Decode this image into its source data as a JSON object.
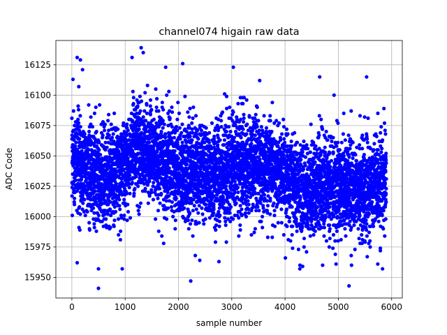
{
  "chart_data": {
    "type": "scatter",
    "title": "channel074 higain raw data",
    "xlabel": "sample number",
    "ylabel": "ADC Code",
    "xlim": [
      -300,
      6200
    ],
    "ylim": [
      15933,
      16145
    ],
    "xticks": [
      0,
      1000,
      2000,
      3000,
      4000,
      5000,
      6000
    ],
    "yticks": [
      15950,
      15975,
      16000,
      16025,
      16050,
      16075,
      16100,
      16125
    ],
    "grid": true,
    "marker_color": "#0000ff",
    "series": [
      {
        "n_points": 5900,
        "x_range": [
          0,
          5900
        ],
        "y_range": [
          15941,
          16139
        ],
        "trend": [
          {
            "x": 0,
            "y": 16048
          },
          {
            "x": 300,
            "y": 16040
          },
          {
            "x": 600,
            "y": 16032
          },
          {
            "x": 900,
            "y": 16038
          },
          {
            "x": 1200,
            "y": 16058
          },
          {
            "x": 1500,
            "y": 16055
          },
          {
            "x": 1800,
            "y": 16042
          },
          {
            "x": 2100,
            "y": 16035
          },
          {
            "x": 2400,
            "y": 16040
          },
          {
            "x": 2700,
            "y": 16032
          },
          {
            "x": 3000,
            "y": 16042
          },
          {
            "x": 3300,
            "y": 16040
          },
          {
            "x": 3600,
            "y": 16045
          },
          {
            "x": 3900,
            "y": 16038
          },
          {
            "x": 4200,
            "y": 16025
          },
          {
            "x": 4500,
            "y": 16022
          },
          {
            "x": 4800,
            "y": 16028
          },
          {
            "x": 5100,
            "y": 16025
          },
          {
            "x": 5400,
            "y": 16022
          },
          {
            "x": 5700,
            "y": 16028
          },
          {
            "x": 5900,
            "y": 16030
          }
        ],
        "spread_sd": 20,
        "outliers": [
          {
            "x": 100,
            "y": 16131
          },
          {
            "x": 160,
            "y": 16129
          },
          {
            "x": 200,
            "y": 16121
          },
          {
            "x": 100,
            "y": 15962
          },
          {
            "x": 500,
            "y": 15957
          },
          {
            "x": 500,
            "y": 15941
          },
          {
            "x": 1300,
            "y": 16139
          },
          {
            "x": 1340,
            "y": 16135
          },
          {
            "x": 1130,
            "y": 16131
          },
          {
            "x": 2080,
            "y": 16126
          },
          {
            "x": 1760,
            "y": 16123
          },
          {
            "x": 2230,
            "y": 15947
          },
          {
            "x": 2760,
            "y": 15963
          },
          {
            "x": 2400,
            "y": 15964
          },
          {
            "x": 3030,
            "y": 16123
          },
          {
            "x": 4280,
            "y": 15960
          },
          {
            "x": 4330,
            "y": 15959
          },
          {
            "x": 4650,
            "y": 16115
          },
          {
            "x": 5200,
            "y": 15943
          },
          {
            "x": 5530,
            "y": 16115
          },
          {
            "x": 5740,
            "y": 15961
          },
          {
            "x": 4920,
            "y": 16100
          }
        ]
      }
    ]
  }
}
